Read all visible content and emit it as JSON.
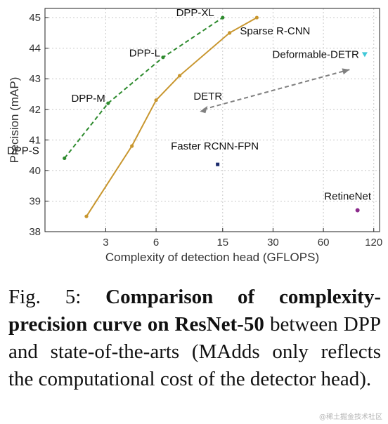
{
  "chart_data": {
    "type": "line",
    "xlabel": "Complexity of detection head (GFLOPS)",
    "ylabel": "Precision (mAP)",
    "x_scale": "log",
    "xlim": [
      1.3,
      130
    ],
    "ylim": [
      38,
      45.3
    ],
    "x_ticks": [
      3,
      6,
      15,
      30,
      60,
      120
    ],
    "y_ticks": [
      38,
      39,
      40,
      41,
      42,
      43,
      44,
      45
    ],
    "grid": true,
    "series": [
      {
        "name": "DPP",
        "style": "dashed",
        "color": "#2e8b2e",
        "points": [
          {
            "x": 1.7,
            "y": 40.4,
            "label": "DPP-S"
          },
          {
            "x": 3.1,
            "y": 42.2,
            "label": "DPP-M"
          },
          {
            "x": 6.6,
            "y": 43.7,
            "label": "DPP-L"
          },
          {
            "x": 15,
            "y": 45.0,
            "label": "DPP-XL"
          }
        ]
      },
      {
        "name": "Sparse R-CNN",
        "style": "solid",
        "color": "#c8962e",
        "points": [
          {
            "x": 2.3,
            "y": 38.5
          },
          {
            "x": 4.3,
            "y": 40.8
          },
          {
            "x": 6.0,
            "y": 42.3
          },
          {
            "x": 8.3,
            "y": 43.1
          },
          {
            "x": 16.5,
            "y": 44.5
          },
          {
            "x": 24.0,
            "y": 45.0
          }
        ]
      },
      {
        "name": "DETR",
        "style": "dashed",
        "color": "#808080",
        "arrow": true,
        "points": [
          {
            "x": 11.5,
            "y": 42.0
          },
          {
            "x": 86,
            "y": 43.3
          }
        ]
      },
      {
        "name": "Deformable-DETR",
        "marker": "triangle",
        "color": "#40c8d8",
        "points": [
          {
            "x": 106,
            "y": 43.8
          }
        ]
      },
      {
        "name": "Faster RCNN-FPN",
        "marker": "square",
        "color": "#1a2a6c",
        "points": [
          {
            "x": 14.0,
            "y": 40.2
          }
        ]
      },
      {
        "name": "RetineNet",
        "marker": "circle",
        "color": "#8b2a8b",
        "points": [
          {
            "x": 96,
            "y": 38.7
          }
        ]
      }
    ]
  },
  "caption": {
    "fig_label": "Fig. 5: ",
    "bold_text": "Comparison of complexity-precision curve on ResNet-50",
    "rest_text": " between DPP and state-of-the-arts (MAdds only reflects the computational cost of the detector head)."
  },
  "watermark": "@稀土掘金技术社区"
}
